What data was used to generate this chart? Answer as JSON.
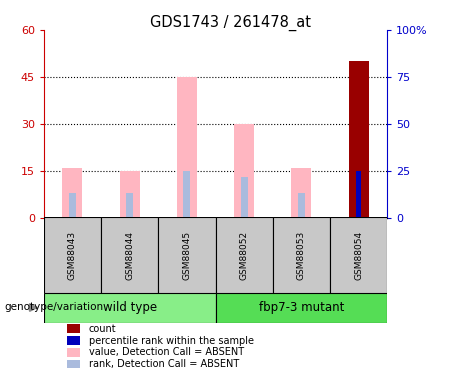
{
  "title": "GDS1743 / 261478_at",
  "samples": [
    "GSM88043",
    "GSM88044",
    "GSM88045",
    "GSM88052",
    "GSM88053",
    "GSM88054"
  ],
  "groups": [
    {
      "name": "wild type",
      "indices": [
        0,
        1,
        2
      ],
      "color": "#66EE66"
    },
    {
      "name": "fbp7-3 mutant",
      "indices": [
        3,
        4,
        5
      ],
      "color": "#44DD44"
    }
  ],
  "value_bars": [
    16,
    15,
    45,
    30,
    16,
    0
  ],
  "rank_bars": [
    8,
    8,
    15,
    13,
    8,
    15
  ],
  "count_bar_index": 5,
  "count_bar_height": 50,
  "percentile_bar_index": 5,
  "percentile_bar_height": 15,
  "value_color": "#FFB6C1",
  "rank_color": "#AABBDD",
  "count_color": "#990000",
  "percentile_color": "#0000BB",
  "ylim_left": [
    0,
    60
  ],
  "ylim_right": [
    0,
    100
  ],
  "yticks_left": [
    0,
    15,
    30,
    45,
    60
  ],
  "yticks_right": [
    0,
    25,
    50,
    75,
    100
  ],
  "ytick_labels_left": [
    "0",
    "15",
    "30",
    "45",
    "60"
  ],
  "ytick_labels_right": [
    "0",
    "25",
    "50",
    "75",
    "100%"
  ],
  "left_tick_color": "#CC0000",
  "right_tick_color": "#0000CC",
  "grid_yticks": [
    15,
    30,
    45
  ],
  "genotype_label": "genotype/variation",
  "legend_items": [
    {
      "color": "#990000",
      "label": "count"
    },
    {
      "color": "#0000BB",
      "label": "percentile rank within the sample"
    },
    {
      "color": "#FFB6C1",
      "label": "value, Detection Call = ABSENT"
    },
    {
      "color": "#AABBDD",
      "label": "rank, Detection Call = ABSENT"
    }
  ],
  "value_bar_width": 0.35,
  "rank_bar_width": 0.12,
  "count_bar_width": 0.35,
  "percentile_bar_width": 0.1,
  "sample_box_color": "#C8C8C8",
  "group_box_wild_color": "#88EE88",
  "group_box_mutant_color": "#55DD55"
}
